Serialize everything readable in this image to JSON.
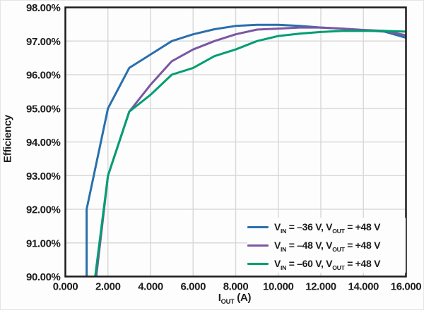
{
  "chart_data": {
    "type": "line",
    "title": "",
    "xlabel": "I_[OUT] (A)",
    "ylabel": "Efficiency",
    "xlim": [
      0,
      16
    ],
    "ylim": [
      90,
      98
    ],
    "grid": true,
    "legend_position": "bottom-right",
    "x_ticks": {
      "values": [
        0,
        2,
        4,
        6,
        8,
        10,
        12,
        14,
        16
      ],
      "labels": [
        "0.000",
        "2.000",
        "4.000",
        "6.000",
        "8.000",
        "10.000",
        "12.000",
        "14.000",
        "16.000"
      ]
    },
    "y_ticks": {
      "values": [
        90,
        91,
        92,
        93,
        94,
        95,
        96,
        97,
        98
      ],
      "labels": [
        "90.00%",
        "91.00%",
        "92.00%",
        "93.00%",
        "94.00%",
        "95.00%",
        "96.00%",
        "97.00%",
        "98.00%"
      ]
    },
    "series": [
      {
        "name": "vin-36",
        "label": "V_[IN] = –36 V, V_[OUT] = +48 V",
        "color": "#2a6fad",
        "points": [
          [
            1.0,
            90.0
          ],
          [
            1.0,
            92.0
          ],
          [
            2.0,
            95.0
          ],
          [
            3.0,
            96.2
          ],
          [
            4.0,
            96.6
          ],
          [
            5.0,
            97.0
          ],
          [
            6.0,
            97.2
          ],
          [
            7.0,
            97.35
          ],
          [
            8.0,
            97.45
          ],
          [
            9.0,
            97.48
          ],
          [
            10.0,
            97.48
          ],
          [
            11.0,
            97.45
          ],
          [
            12.0,
            97.4
          ],
          [
            13.0,
            97.37
          ],
          [
            14.0,
            97.32
          ],
          [
            15.0,
            97.28
          ],
          [
            16.0,
            97.1
          ]
        ]
      },
      {
        "name": "vin-48",
        "label": "V_[IN] = –48 V, V_[OUT] = +48 V",
        "color": "#7a57a3",
        "points": [
          [
            1.45,
            90.0
          ],
          [
            2.0,
            93.0
          ],
          [
            3.0,
            94.9
          ],
          [
            4.0,
            95.7
          ],
          [
            5.0,
            96.4
          ],
          [
            6.0,
            96.75
          ],
          [
            7.0,
            97.0
          ],
          [
            8.0,
            97.2
          ],
          [
            9.0,
            97.34
          ],
          [
            10.0,
            97.37
          ],
          [
            11.0,
            97.4
          ],
          [
            12.0,
            97.4
          ],
          [
            13.0,
            97.37
          ],
          [
            14.0,
            97.33
          ],
          [
            15.0,
            97.3
          ],
          [
            16.0,
            97.17
          ]
        ]
      },
      {
        "name": "vin-60",
        "label": "V_[IN] = –60 V, V_[OUT] = +48 V",
        "color": "#009e72",
        "points": [
          [
            1.4,
            90.0
          ],
          [
            2.0,
            93.0
          ],
          [
            3.0,
            94.9
          ],
          [
            4.0,
            95.4
          ],
          [
            5.0,
            96.0
          ],
          [
            6.0,
            96.2
          ],
          [
            7.0,
            96.55
          ],
          [
            8.0,
            96.75
          ],
          [
            9.0,
            97.0
          ],
          [
            10.0,
            97.15
          ],
          [
            11.0,
            97.22
          ],
          [
            12.0,
            97.27
          ],
          [
            13.0,
            97.3
          ],
          [
            14.0,
            97.3
          ],
          [
            15.0,
            97.3
          ],
          [
            16.0,
            97.28
          ]
        ]
      }
    ],
    "colors": {
      "grid": "#d9d9d9",
      "frame": "#1c1c1c",
      "text": "#1d1d1f",
      "background": "#fdfdfd"
    }
  }
}
